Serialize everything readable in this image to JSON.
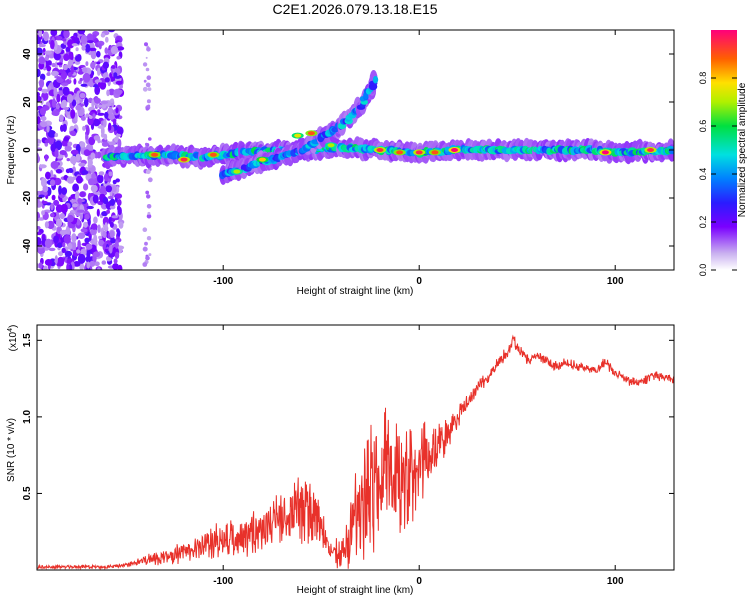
{
  "title": "C2E1.2026.079.13.18.E15",
  "chart_data": [
    {
      "type": "heatmap",
      "xlabel": "Height of straight line (km)",
      "ylabel": "Frequency (Hz)",
      "xlim": [
        -195,
        130
      ],
      "ylim": [
        -50,
        50
      ],
      "xticks": [
        -100,
        0,
        100
      ],
      "yticks": [
        -40,
        -20,
        0,
        20,
        40
      ],
      "colorbar": {
        "label": "Normalized spectral amplitude",
        "range": [
          0,
          1
        ],
        "ticks": [
          "0.0",
          "0.2",
          "0.4",
          "0.6",
          "0.8"
        ],
        "tick_values": [
          0.0,
          0.2,
          0.4,
          0.6,
          0.8
        ]
      },
      "noise_region": {
        "x_from": -195,
        "x_to": -152
      },
      "ridges": [
        {
          "name": "carrier",
          "points": [
            [
              -160,
              -3
            ],
            [
              -130,
              -2
            ],
            [
              -110,
              -3
            ],
            [
              -90,
              -1
            ],
            [
              -60,
              0
            ],
            [
              -40,
              1
            ],
            [
              -20,
              0
            ],
            [
              0,
              -1
            ],
            [
              20,
              0
            ],
            [
              60,
              0
            ],
            [
              90,
              0
            ],
            [
              100,
              -1
            ],
            [
              130,
              0
            ]
          ],
          "amplitude": 0.6
        },
        {
          "name": "lower branch",
          "points": [
            [
              -100,
              -10
            ],
            [
              -90,
              -8
            ],
            [
              -80,
              -5
            ],
            [
              -70,
              -3
            ],
            [
              -60,
              0
            ],
            [
              -50,
              5
            ],
            [
              -40,
              10
            ],
            [
              -30,
              18
            ],
            [
              -22,
              30
            ]
          ],
          "amplitude": 0.5
        }
      ],
      "hotspots": [
        {
          "x": -135,
          "y": -2,
          "a": 0.9
        },
        {
          "x": -120,
          "y": -4,
          "a": 0.95
        },
        {
          "x": -105,
          "y": -2,
          "a": 0.9
        },
        {
          "x": -93,
          "y": -9,
          "a": 0.7
        },
        {
          "x": -80,
          "y": -4,
          "a": 0.8
        },
        {
          "x": -62,
          "y": 6,
          "a": 0.75
        },
        {
          "x": -55,
          "y": 7,
          "a": 0.9
        },
        {
          "x": -45,
          "y": 2,
          "a": 0.7
        },
        {
          "x": -20,
          "y": 0,
          "a": 0.95
        },
        {
          "x": -10,
          "y": -1,
          "a": 0.9
        },
        {
          "x": 0,
          "y": -1,
          "a": 0.95
        },
        {
          "x": 8,
          "y": -1,
          "a": 0.9
        },
        {
          "x": 18,
          "y": 0,
          "a": 1.0
        },
        {
          "x": 95,
          "y": -1,
          "a": 1.0
        },
        {
          "x": 118,
          "y": 0,
          "a": 0.95
        }
      ]
    },
    {
      "type": "line",
      "xlabel": "Height of straight line (km)",
      "ylabel": "SNR (10 * v/v)",
      "yscale_note": "(x10",
      "yscale_exp": "4",
      "xlim": [
        -195,
        130
      ],
      "ylim": [
        0,
        1.6
      ],
      "xticks": [
        -100,
        0,
        100
      ],
      "yticks": [
        0.5,
        1.0,
        1.5
      ],
      "ytick_labels": [
        "0.5",
        "1.0",
        "1.5"
      ],
      "color": "#e8312a",
      "series": [
        {
          "name": "SNR",
          "x": [
            -195,
            -180,
            -160,
            -150,
            -140,
            -130,
            -120,
            -110,
            -100,
            -90,
            -80,
            -70,
            -60,
            -55,
            -50,
            -45,
            -40,
            -35,
            -30,
            -25,
            -22,
            -20,
            -15,
            -10,
            -5,
            0,
            5,
            10,
            15,
            20,
            25,
            30,
            35,
            40,
            45,
            48,
            50,
            55,
            60,
            65,
            70,
            75,
            80,
            85,
            90,
            95,
            100,
            105,
            110,
            115,
            120,
            125,
            130
          ],
          "y": [
            0.02,
            0.02,
            0.02,
            0.03,
            0.06,
            0.08,
            0.12,
            0.16,
            0.2,
            0.22,
            0.28,
            0.35,
            0.4,
            0.35,
            0.25,
            0.12,
            0.1,
            0.2,
            0.35,
            0.45,
            0.7,
            0.55,
            0.65,
            0.62,
            0.6,
            0.7,
            0.75,
            0.8,
            0.9,
            1.0,
            1.1,
            1.2,
            1.25,
            1.35,
            1.42,
            1.5,
            1.45,
            1.38,
            1.4,
            1.38,
            1.33,
            1.35,
            1.33,
            1.32,
            1.3,
            1.36,
            1.28,
            1.25,
            1.22,
            1.24,
            1.28,
            1.26,
            1.24
          ],
          "spike_amplitude": [
            0,
            0,
            0,
            0.01,
            0.03,
            0.05,
            0.08,
            0.1,
            0.12,
            0.15,
            0.15,
            0.18,
            0.25,
            0.22,
            0.18,
            0.1,
            0.1,
            0.3,
            0.45,
            0.5,
            0.55,
            0.5,
            0.45,
            0.4,
            0.35,
            0.3,
            0.2,
            0.15,
            0.1,
            0.08,
            0.06,
            0.05,
            0.04,
            0.04,
            0.04,
            0.04,
            0.04,
            0.04,
            0.04,
            0.04,
            0.04,
            0.04,
            0.03,
            0.03,
            0.03,
            0.03,
            0.03,
            0.03,
            0.03,
            0.03,
            0.03,
            0.03,
            0.03
          ]
        }
      ]
    }
  ]
}
